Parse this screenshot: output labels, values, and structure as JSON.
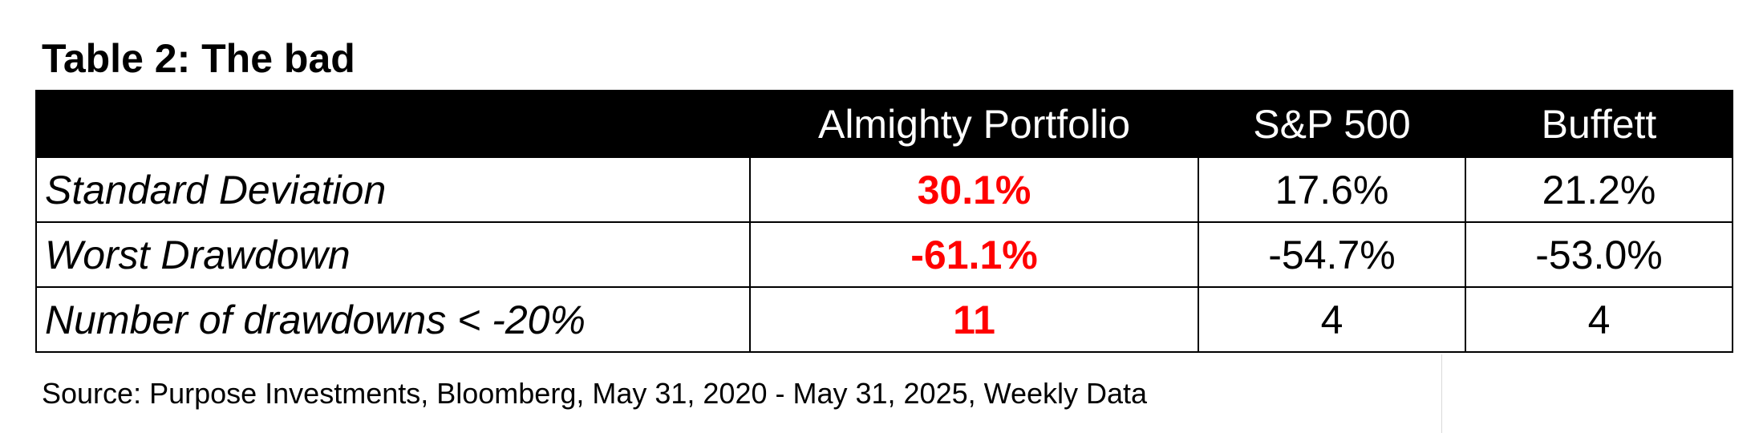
{
  "title": "Table 2: The bad",
  "colors": {
    "header_bg": "#000000",
    "header_text": "#ffffff",
    "highlight": "#ff0000",
    "text": "#000000"
  },
  "table": {
    "headers": [
      "",
      "Almighty Portfolio",
      "S&P 500",
      "Buffett"
    ],
    "rows": [
      {
        "label": "Standard Deviation",
        "values": [
          "30.1%",
          "17.6%",
          "21.2%"
        ]
      },
      {
        "label": "Worst Drawdown",
        "values": [
          "-61.1%",
          "-54.7%",
          "-53.0%"
        ]
      },
      {
        "label": "Number of drawdowns < -20%",
        "values": [
          "11",
          "4",
          "4"
        ]
      }
    ]
  },
  "source": "Source: Purpose Investments, Bloomberg, May 31, 2020 - May 31, 2025, Weekly Data"
}
